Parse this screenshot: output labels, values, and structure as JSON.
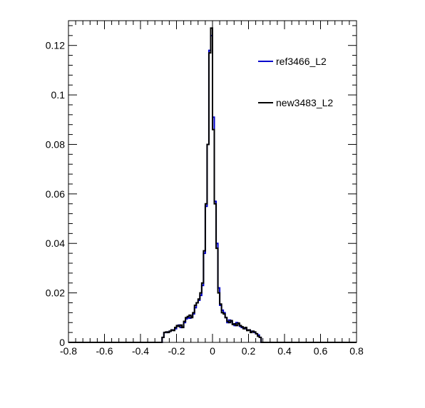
{
  "chart_data": {
    "type": "line",
    "title": "",
    "xlabel": "",
    "ylabel": "",
    "xlim": [
      -0.8,
      0.8
    ],
    "ylim": [
      0,
      0.13
    ],
    "x_ticks": [
      -0.8,
      -0.6,
      -0.4,
      -0.2,
      0,
      0.2,
      0.4,
      0.6,
      0.8
    ],
    "x_tick_labels": [
      "-0.8",
      "-0.6",
      "-0.4",
      "-0.2",
      "0",
      "0.2",
      "0.4",
      "0.6",
      "0.8"
    ],
    "y_ticks": [
      0,
      0.02,
      0.04,
      0.06,
      0.08,
      0.1,
      0.12
    ],
    "y_tick_labels": [
      "0",
      "0.02",
      "0.04",
      "0.06",
      "0.08",
      "0.1",
      "0.12"
    ],
    "grid": false,
    "legend_position": "top-right",
    "bin_width": 0.01,
    "x": [
      -0.28,
      -0.27,
      -0.26,
      -0.25,
      -0.24,
      -0.23,
      -0.22,
      -0.21,
      -0.2,
      -0.19,
      -0.18,
      -0.17,
      -0.16,
      -0.15,
      -0.14,
      -0.13,
      -0.12,
      -0.11,
      -0.1,
      -0.09,
      -0.08,
      -0.07,
      -0.06,
      -0.05,
      -0.04,
      -0.03,
      -0.02,
      -0.01,
      0.0,
      0.01,
      0.02,
      0.03,
      0.04,
      0.05,
      0.06,
      0.07,
      0.08,
      0.09,
      0.1,
      0.11,
      0.12,
      0.13,
      0.14,
      0.15,
      0.16,
      0.17,
      0.18,
      0.19,
      0.2,
      0.21,
      0.22,
      0.23,
      0.24,
      0.25,
      0.26,
      0.27
    ],
    "series": [
      {
        "name": "ref3466_L2",
        "color": "#0000cc",
        "values": [
          0.002,
          0.004,
          0.004,
          0.0042,
          0.0045,
          0.005,
          0.005,
          0.0055,
          0.0065,
          0.007,
          0.006,
          0.0062,
          0.008,
          0.0095,
          0.01,
          0.0098,
          0.0105,
          0.0115,
          0.014,
          0.016,
          0.017,
          0.019,
          0.023,
          0.036,
          0.055,
          0.08,
          0.118,
          0.124,
          0.091,
          0.057,
          0.04,
          0.022,
          0.015,
          0.013,
          0.012,
          0.01,
          0.008,
          0.009,
          0.0085,
          0.0075,
          0.0068,
          0.008,
          0.0075,
          0.0065,
          0.006,
          0.0058,
          0.0055,
          0.005,
          0.005,
          0.0045,
          0.0045,
          0.004,
          0.0035,
          0.003,
          0.002,
          0.0
        ]
      },
      {
        "name": "new3483_L2",
        "color": "#000000",
        "values": [
          0.002,
          0.004,
          0.0042,
          0.004,
          0.0045,
          0.005,
          0.0048,
          0.006,
          0.0068,
          0.0065,
          0.007,
          0.006,
          0.0085,
          0.01,
          0.0105,
          0.011,
          0.01,
          0.012,
          0.015,
          0.016,
          0.0175,
          0.02,
          0.024,
          0.037,
          0.056,
          0.08,
          0.117,
          0.127,
          0.086,
          0.056,
          0.038,
          0.02,
          0.0155,
          0.012,
          0.0115,
          0.01,
          0.0085,
          0.008,
          0.0088,
          0.0072,
          0.0075,
          0.0068,
          0.0078,
          0.0068,
          0.0063,
          0.0055,
          0.006,
          0.0048,
          0.005,
          0.004,
          0.0045,
          0.0042,
          0.0035,
          0.0025,
          0.002,
          0.0
        ]
      }
    ]
  }
}
